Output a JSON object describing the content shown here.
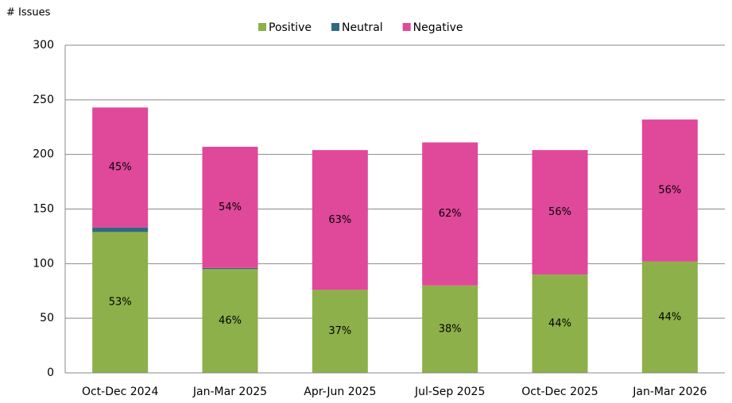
{
  "chart_data": {
    "type": "stacked_bar",
    "y_axis_label": "# Issues",
    "categories": [
      "Oct-Dec 2024",
      "Jan-Mar 2025",
      "Apr-Jun 2025",
      "Jul-Sep 2025",
      "Oct-Dec 2025",
      "Jan-Mar 2026"
    ],
    "series": [
      {
        "name": "Positive",
        "color": "#8db04a",
        "values": [
          129,
          95,
          76,
          80,
          90,
          102
        ],
        "labels": [
          "53%",
          "46%",
          "37%",
          "38%",
          "44%",
          "44%"
        ]
      },
      {
        "name": "Neutral",
        "color": "#2e6b80",
        "values": [
          4,
          1,
          0,
          0,
          0,
          0
        ]
      },
      {
        "name": "Negative",
        "color": "#e0489a",
        "values": [
          110,
          111,
          128,
          131,
          114,
          130
        ],
        "labels": [
          "45%",
          "54%",
          "63%",
          "62%",
          "56%",
          "56%"
        ]
      }
    ],
    "ylim": [
      0,
      300
    ],
    "yticks": [
      0,
      50,
      100,
      150,
      200,
      250,
      300
    ],
    "grid": true,
    "legend": "top"
  }
}
